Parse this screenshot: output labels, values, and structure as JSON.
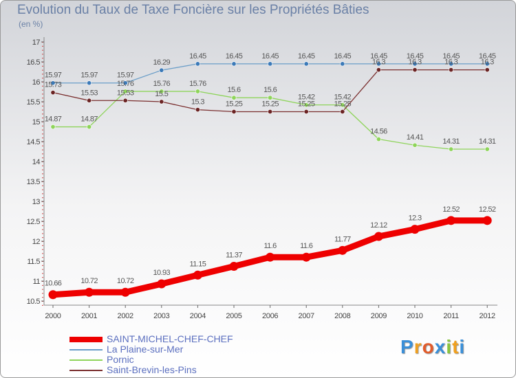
{
  "title": "Evolution du Taux de Taxe Foncière sur les Propriétés Bâties",
  "subtitle": "(en %)",
  "logo": {
    "letters": [
      "P",
      "r",
      "o",
      "x",
      "i",
      "t",
      "i"
    ],
    "colors": [
      "#3a8fd8",
      "#f0a020",
      "#e25b2a",
      "#3a8fd8",
      "#8ac53e",
      "#f0a020",
      "#3a8fd8"
    ]
  },
  "chart_data": {
    "type": "line",
    "title": "Evolution du Taux de Taxe Foncière sur les Propriétés Bâties",
    "ylabel": "(en %)",
    "categories": [
      "2000",
      "2001",
      "2002",
      "2003",
      "2004",
      "2005",
      "2006",
      "2007",
      "2008",
      "2009",
      "2010",
      "2011",
      "2012"
    ],
    "ylim": [
      10.5,
      17
    ],
    "yticks": [
      "10.5",
      "11",
      "11.5",
      "12",
      "12.5",
      "13",
      "13.5",
      "14",
      "14.5",
      "15",
      "15.5",
      "16",
      "16.5",
      "17"
    ],
    "grid": false,
    "series": [
      {
        "name": "La Plaine-sur-Mer",
        "color": "#6a9ec8",
        "dot": "#3c7ab8",
        "values": [
          15.97,
          15.97,
          15.97,
          16.29,
          16.45,
          16.45,
          16.45,
          16.45,
          16.45,
          16.45,
          16.45,
          16.45,
          16.45
        ],
        "labels": [
          "15.97",
          "15.97",
          "15.97",
          "16.29",
          "16.45",
          "16.45",
          "16.45",
          "16.45",
          "16.45",
          "16.45",
          "16.45",
          "16.45",
          "16.45"
        ]
      },
      {
        "name": "Pornic",
        "color": "#8ed45a",
        "dot": "#8ed45a",
        "values": [
          14.87,
          14.87,
          15.76,
          15.76,
          15.76,
          15.6,
          15.6,
          15.42,
          15.42,
          14.56,
          14.41,
          14.31,
          14.31
        ],
        "labels": [
          "14.87",
          "14.87",
          "15.76",
          "15.76",
          "15.76",
          "15.6",
          "15.6",
          "15.42",
          "15.42",
          "14.56",
          "14.41",
          "14.31",
          "14.31"
        ]
      },
      {
        "name": "Saint-Brevin-les-Pins",
        "color": "#7a2e2e",
        "dot": "#6b2424",
        "values": [
          15.73,
          15.53,
          15.53,
          15.5,
          15.3,
          15.25,
          15.25,
          15.25,
          15.25,
          16.3,
          16.3,
          16.3,
          16.3
        ],
        "labels": [
          "15.73",
          "15.53",
          "15.53",
          "15.5",
          "15.3",
          "15.25",
          "15.25",
          "15.25",
          "15.25",
          "16.3",
          "16.3",
          "16.3",
          "16.3"
        ]
      },
      {
        "name": "SAINT-MICHEL-CHEF-CHEF",
        "color": "#ee0000",
        "dot": "#ee0000",
        "thick": true,
        "values": [
          10.66,
          10.72,
          10.72,
          10.93,
          11.15,
          11.37,
          11.6,
          11.6,
          11.77,
          12.12,
          12.3,
          12.52,
          12.52
        ],
        "labels": [
          "10.66",
          "10.72",
          "10.72",
          "10.93",
          "11.15",
          "11.37",
          "11.6",
          "11.6",
          "11.77",
          "12.12",
          "12.3",
          "12.52",
          "12.52"
        ]
      }
    ],
    "legend_order": [
      "SAINT-MICHEL-CHEF-CHEF",
      "La Plaine-sur-Mer",
      "Pornic",
      "Saint-Brevin-les-Pins"
    ],
    "legend_position": "bottom-left"
  }
}
